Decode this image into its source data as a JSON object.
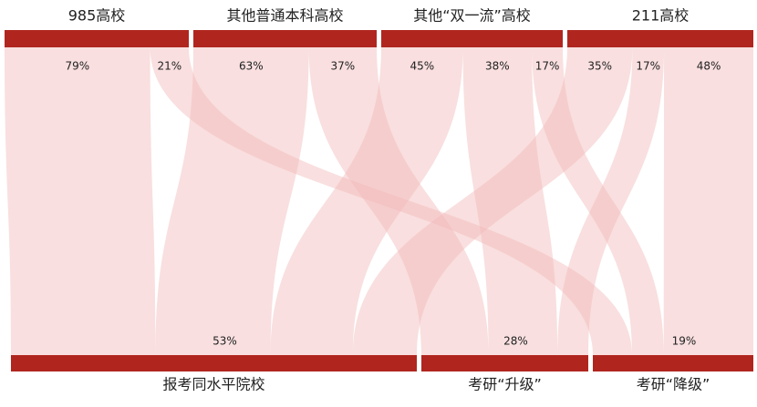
{
  "chart_data": {
    "type": "sankey",
    "bar_color": "#b0261f",
    "flow_color": "#f2b9b9",
    "categories": [
      "报考同水平院校",
      "考研“升级”",
      "考研“降级”"
    ],
    "values": [
      53,
      28,
      19
    ],
    "value_labels": [
      "53%",
      "28%",
      "19%"
    ],
    "series": [
      {
        "name": "985高校",
        "values": [
          79,
          null,
          21
        ],
        "value_labels": [
          "79%",
          null,
          "21%"
        ]
      },
      {
        "name": "其他普通本科高校",
        "values": [
          63,
          37,
          null
        ],
        "value_labels": [
          "63%",
          "37%",
          null
        ]
      },
      {
        "name": "其他“双一流”高校",
        "values": [
          45,
          38,
          17
        ],
        "value_labels": [
          "45%",
          "38%",
          "17%"
        ]
      },
      {
        "name": "211高校",
        "values": [
          35,
          17,
          48
        ],
        "value_labels": [
          "35%",
          "17%",
          "48%"
        ]
      }
    ]
  }
}
